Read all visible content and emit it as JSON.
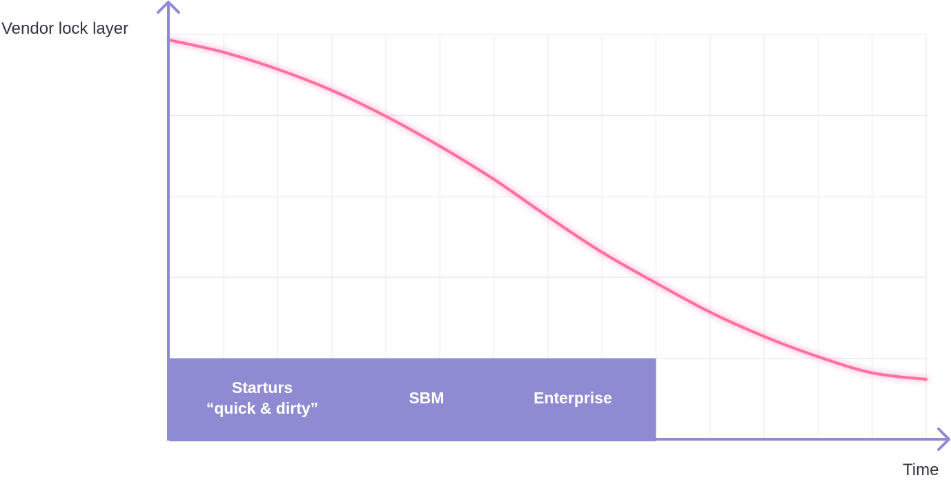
{
  "chart_data": {
    "type": "line",
    "xlabel": "Time",
    "ylabel": "Vendor lock layer",
    "grid": true,
    "series": [
      {
        "curve": "decreasing-s-curve",
        "color": "#ff6fa3",
        "x": [
          0,
          0.5,
          1,
          1.5,
          2,
          2.5,
          3,
          3.5,
          4,
          4.5,
          5,
          5.5,
          6,
          6.5,
          7
        ],
        "values": [
          4.93,
          4.78,
          4.57,
          4.31,
          3.99,
          3.62,
          3.21,
          2.75,
          2.31,
          1.93,
          1.57,
          1.27,
          1.02,
          0.82,
          0.74
        ]
      }
    ],
    "xlim": [
      0,
      7
    ],
    "ylim": [
      0,
      5
    ],
    "bands": [
      {
        "lines": [
          "Starturs",
          "“quick & dirty”"
        ]
      },
      {
        "lines": [
          "SBM"
        ]
      },
      {
        "lines": [
          "Enterprise"
        ]
      }
    ],
    "band_x_range": [
      0,
      4.5
    ],
    "band_y_range": [
      0,
      1
    ],
    "colors": {
      "axis": "#8f8bd2",
      "grid": "#e6e4f6",
      "band": "#8f8bd2",
      "curve": "#ff6fa3",
      "text": "#2f3340",
      "band_text": "#ffffff"
    }
  }
}
